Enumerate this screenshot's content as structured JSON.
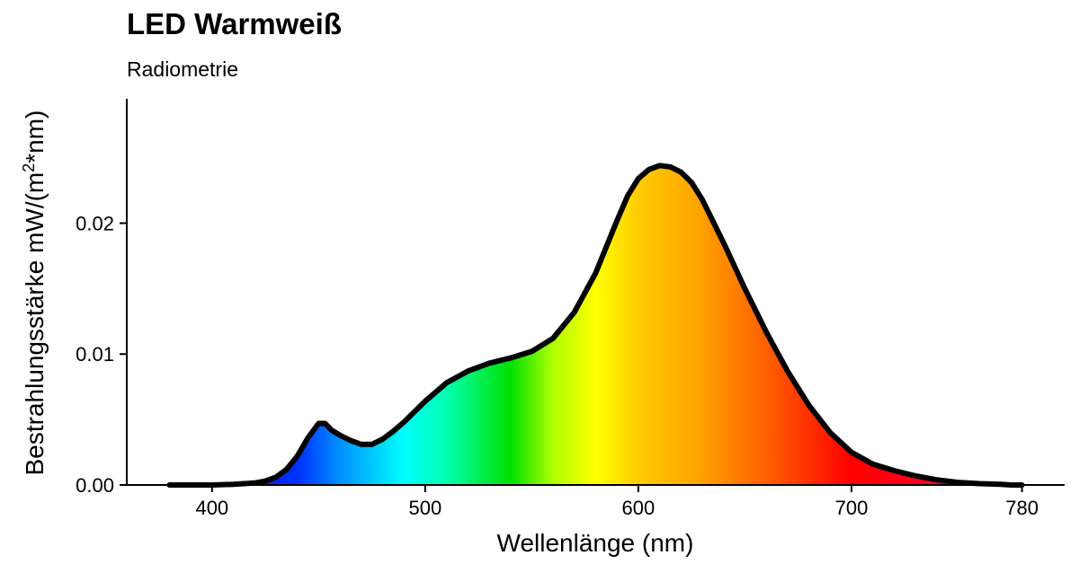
{
  "chart_data": {
    "type": "area",
    "title": "LED Warmweiß",
    "subtitle": "Radiometrie",
    "xlabel": "Wellenlänge (nm)",
    "ylabel_main": "Bestrahlungsstärke  mW/(m",
    "ylabel_sup": "2",
    "ylabel_end": "*nm)",
    "xlim": [
      360,
      800
    ],
    "ylim": [
      0,
      0.0295
    ],
    "x_ticks": [
      400,
      500,
      600,
      700,
      780
    ],
    "x_tick_labels": [
      "400",
      "500",
      "600",
      "700",
      "780"
    ],
    "y_ticks": [
      0,
      0.01,
      0.02
    ],
    "y_tick_labels": [
      "0.00",
      "0.01",
      "0.02"
    ],
    "grid": false,
    "legend": "none",
    "fill": "visible-spectrum gradient under curve",
    "line_color": "#000000",
    "spectrum_colors": [
      {
        "wavelength": 380,
        "color": "#2a00a0"
      },
      {
        "wavelength": 440,
        "color": "#0030ff"
      },
      {
        "wavelength": 460,
        "color": "#0090ff"
      },
      {
        "wavelength": 490,
        "color": "#00ffff"
      },
      {
        "wavelength": 510,
        "color": "#00ffb0"
      },
      {
        "wavelength": 540,
        "color": "#00e000"
      },
      {
        "wavelength": 560,
        "color": "#b0ff00"
      },
      {
        "wavelength": 580,
        "color": "#ffff00"
      },
      {
        "wavelength": 600,
        "color": "#ffcc00"
      },
      {
        "wavelength": 630,
        "color": "#ffa000"
      },
      {
        "wavelength": 660,
        "color": "#ff6000"
      },
      {
        "wavelength": 700,
        "color": "#ff0000"
      },
      {
        "wavelength": 780,
        "color": "#ff0050"
      }
    ],
    "series": [
      {
        "x": [
          380,
          390,
          400,
          410,
          415,
          420,
          425,
          430,
          435,
          440,
          445,
          450,
          453,
          456,
          460,
          465,
          470,
          475,
          480,
          485,
          490,
          495,
          500,
          510,
          520,
          530,
          540,
          550,
          560,
          570,
          580,
          590,
          595,
          600,
          605,
          610,
          615,
          620,
          625,
          630,
          640,
          650,
          660,
          670,
          680,
          690,
          700,
          710,
          720,
          730,
          740,
          750,
          760,
          770,
          775,
          780
        ],
        "y": [
          0.0,
          0.0,
          0.0,
          5e-05,
          0.0001,
          0.00015,
          0.0003,
          0.0006,
          0.0012,
          0.0022,
          0.0036,
          0.0047,
          0.0047,
          0.0042,
          0.0038,
          0.0034,
          0.0031,
          0.0031,
          0.0035,
          0.0041,
          0.0048,
          0.0056,
          0.0064,
          0.0078,
          0.0087,
          0.0093,
          0.0097,
          0.0102,
          0.0112,
          0.0132,
          0.0162,
          0.0202,
          0.0221,
          0.0234,
          0.0241,
          0.0244,
          0.0243,
          0.0239,
          0.0231,
          0.0218,
          0.0185,
          0.015,
          0.0117,
          0.0087,
          0.0061,
          0.004,
          0.0025,
          0.0016,
          0.0011,
          0.0007,
          0.0004,
          0.0002,
          0.0001,
          5e-05,
          0.0,
          0.0
        ]
      }
    ]
  }
}
